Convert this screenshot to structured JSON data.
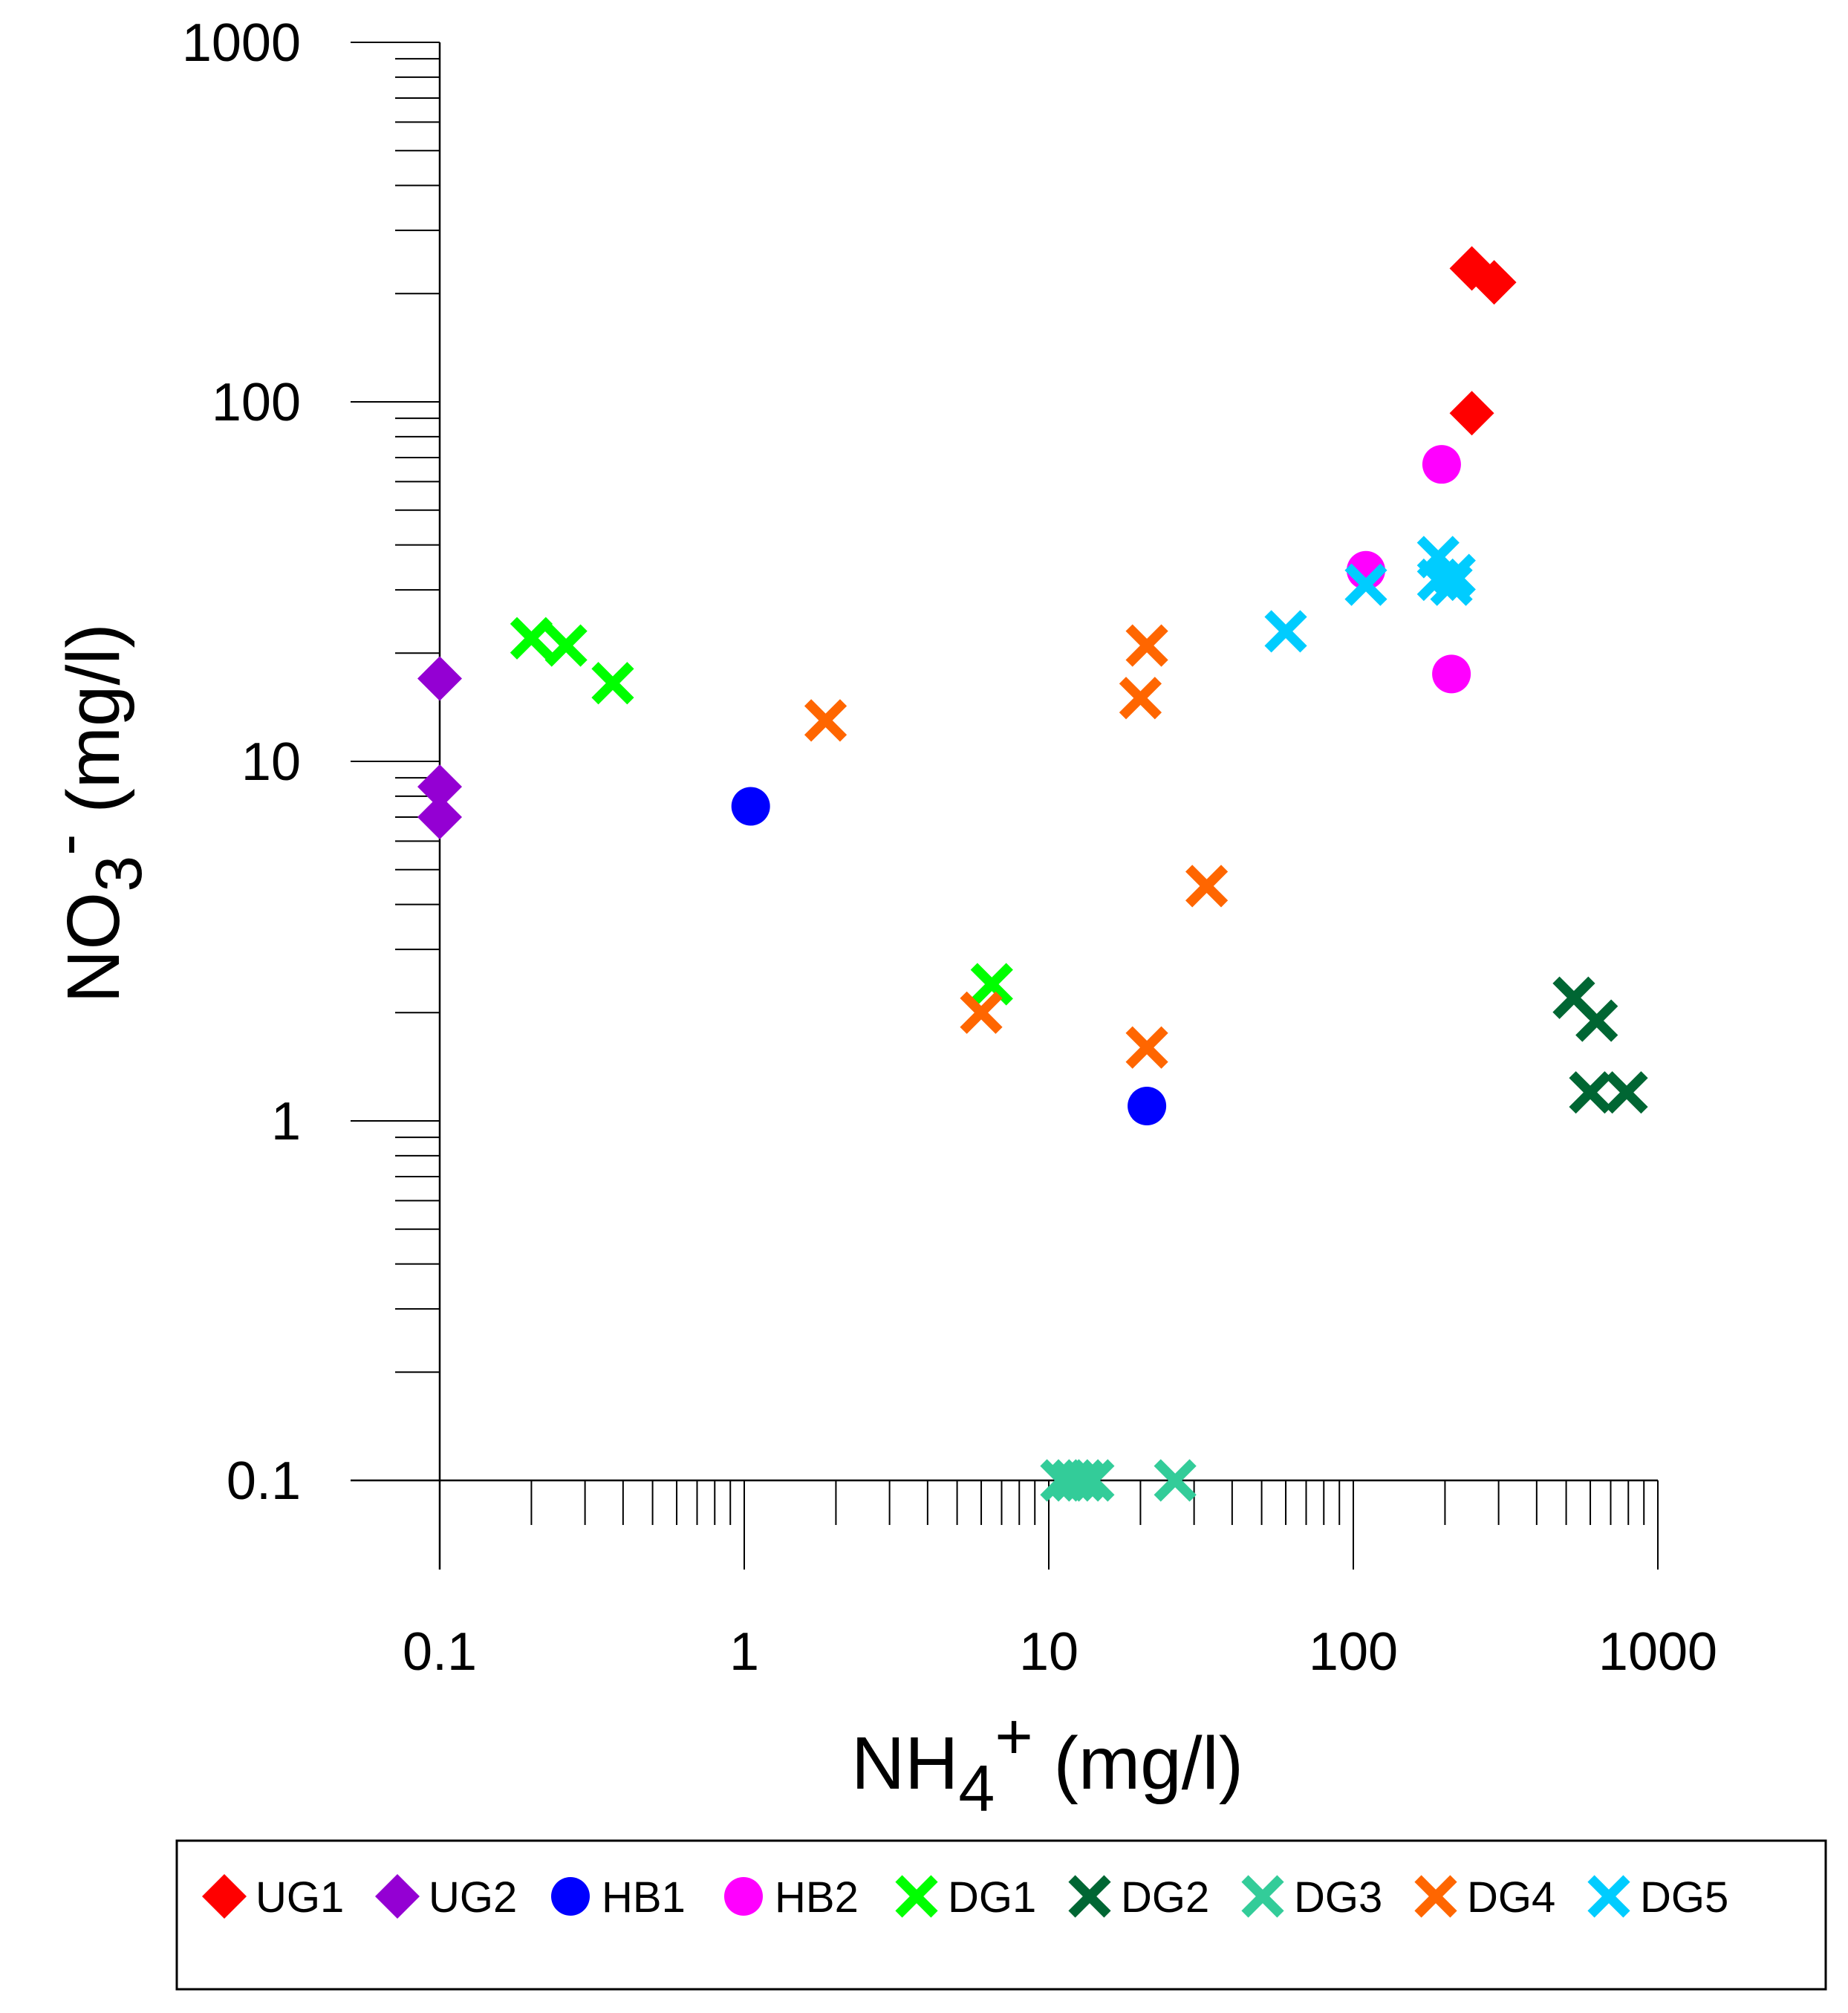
{
  "chart_data": {
    "type": "scatter",
    "title": "",
    "xlabel": {
      "base": "NH",
      "sub": "4",
      "sup": "+",
      "unit": " (mg/l)"
    },
    "ylabel": {
      "base": "NO",
      "sub": "3",
      "sup": "-",
      "unit": " (mg/l)"
    },
    "xscale": "log",
    "yscale": "log",
    "xlim": [
      0.1,
      1000
    ],
    "ylim": [
      0.1,
      1000
    ],
    "xticks": [
      {
        "value": 0.1,
        "label": "0.1"
      },
      {
        "value": 1,
        "label": "1"
      },
      {
        "value": 10,
        "label": "10"
      },
      {
        "value": 100,
        "label": "100"
      },
      {
        "value": 1000,
        "label": "1000"
      }
    ],
    "yticks": [
      {
        "value": 0.1,
        "label": "0.1"
      },
      {
        "value": 1,
        "label": "1"
      },
      {
        "value": 10,
        "label": "10"
      },
      {
        "value": 100,
        "label": "100"
      },
      {
        "value": 1000,
        "label": "1000"
      }
    ],
    "legend_position": "bottom",
    "series": [
      {
        "name": "UG1",
        "marker": "diamond",
        "color": "#ff0000",
        "points": [
          [
            245,
            235
          ],
          [
            290,
            215
          ],
          [
            245,
            93
          ]
        ]
      },
      {
        "name": "UG2",
        "marker": "diamond",
        "color": "#9400d3",
        "points": [
          [
            0.1,
            17
          ],
          [
            0.1,
            8.5
          ],
          [
            0.1,
            7
          ]
        ]
      },
      {
        "name": "HB1",
        "marker": "circle",
        "color": "#0000ff",
        "points": [
          [
            1.05,
            7.5
          ],
          [
            21,
            1.1
          ]
        ]
      },
      {
        "name": "HB2",
        "marker": "circle",
        "color": "#ff00ff",
        "points": [
          [
            195,
            67
          ],
          [
            110,
            34
          ],
          [
            210,
            17.5
          ]
        ]
      },
      {
        "name": "DG1",
        "marker": "x",
        "color": "#00ff00",
        "points": [
          [
            0.2,
            22
          ],
          [
            0.26,
            21
          ],
          [
            0.37,
            16.5
          ],
          [
            6.5,
            2.4
          ]
        ]
      },
      {
        "name": "DG2",
        "marker": "x",
        "color": "#006633",
        "points": [
          [
            530,
            2.2
          ],
          [
            630,
            1.9
          ],
          [
            600,
            1.2
          ],
          [
            790,
            1.2
          ]
        ]
      },
      {
        "name": "DG3",
        "marker": "x",
        "color": "#33cc99",
        "points": [
          [
            11,
            0.1
          ],
          [
            12,
            0.1
          ],
          [
            13,
            0.1
          ],
          [
            14,
            0.1
          ],
          [
            26,
            0.1
          ]
        ]
      },
      {
        "name": "DG4",
        "marker": "x",
        "color": "#ff6600",
        "points": [
          [
            1.85,
            13
          ],
          [
            6,
            2
          ],
          [
            21,
            21
          ],
          [
            20,
            15
          ],
          [
            33,
            4.5
          ],
          [
            21,
            1.6
          ]
        ]
      },
      {
        "name": "DG5",
        "marker": "x",
        "color": "#00ccff",
        "points": [
          [
            60,
            23
          ],
          [
            110,
            31
          ],
          [
            190,
            37
          ],
          [
            190,
            32
          ],
          [
            215,
            33
          ],
          [
            210,
            31
          ]
        ]
      }
    ]
  }
}
